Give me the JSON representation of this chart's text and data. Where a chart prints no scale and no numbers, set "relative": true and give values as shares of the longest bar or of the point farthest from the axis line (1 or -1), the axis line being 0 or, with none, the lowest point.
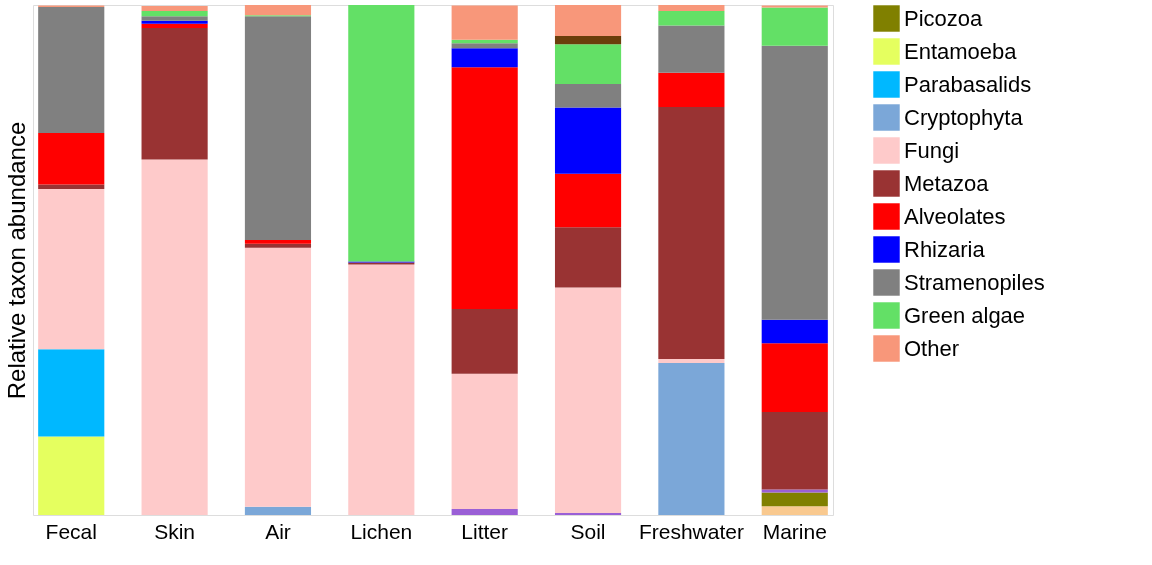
{
  "chart_data": {
    "type": "bar",
    "stacked": true,
    "relative": true,
    "ylabel": "Relative taxon abundance",
    "legend": "right",
    "grid": false,
    "categories": [
      "Fecal",
      "Skin",
      "Air",
      "Lichen",
      "Litter",
      "Soil",
      "Freshwater",
      "Marine"
    ],
    "series": [
      {
        "color": "#f9c98f",
        "values": [
          null,
          null,
          null,
          null,
          null,
          null,
          null,
          0.017
        ]
      },
      {
        "name": "Picozoa",
        "color": "#808000",
        "values": [
          null,
          null,
          null,
          null,
          null,
          null,
          null,
          0.027
        ]
      },
      {
        "color": "#9a5fd6",
        "values": [
          null,
          null,
          null,
          null,
          0.012,
          0.004,
          null,
          0.006
        ]
      },
      {
        "name": "Entamoeba",
        "color": "#e5ff5f",
        "values": [
          0.154,
          null,
          null,
          null,
          null,
          null,
          null,
          null
        ]
      },
      {
        "name": "Parabasalids",
        "color": "#00b8ff",
        "values": [
          0.171,
          null,
          null,
          null,
          null,
          null,
          null,
          null
        ]
      },
      {
        "name": "Cryptophyta",
        "color": "#7ba7d8",
        "values": [
          null,
          null,
          0.016,
          null,
          null,
          null,
          0.298,
          null
        ]
      },
      {
        "name": "Fungi",
        "color": "#fecaca",
        "values": [
          0.314,
          0.697,
          0.508,
          0.491,
          0.265,
          0.442,
          0.008,
          null
        ]
      },
      {
        "name": "Metazoa",
        "color": "#993333",
        "values": [
          0.009,
          0.258,
          0.008,
          0.004,
          0.127,
          0.118,
          0.494,
          0.152
        ]
      },
      {
        "name": "Alveolates",
        "color": "#ff0000",
        "values": [
          0.101,
          0.008,
          0.007,
          null,
          0.474,
          0.105,
          0.067,
          0.135
        ]
      },
      {
        "name": "Rhizaria",
        "color": "#0000ff",
        "values": [
          null,
          0.006,
          null,
          0.002,
          0.037,
          0.13,
          null,
          0.046
        ]
      },
      {
        "name": "Stramenopiles",
        "color": "#808080",
        "values": [
          0.247,
          0.009,
          0.439,
          null,
          0.01,
          0.046,
          0.093,
          0.537
        ]
      },
      {
        "name": "Green algae",
        "color": "#63e066",
        "values": [
          null,
          0.01,
          0.002,
          0.503,
          0.007,
          0.078,
          0.028,
          0.075
        ]
      },
      {
        "color": "#6b3e0b",
        "values": [
          null,
          null,
          null,
          null,
          null,
          0.016,
          null,
          null
        ]
      },
      {
        "name": "Other",
        "color": "#f8977a",
        "values": [
          0.003,
          0.01,
          0.02,
          null,
          0.067,
          0.061,
          0.012,
          0.004
        ]
      }
    ]
  }
}
